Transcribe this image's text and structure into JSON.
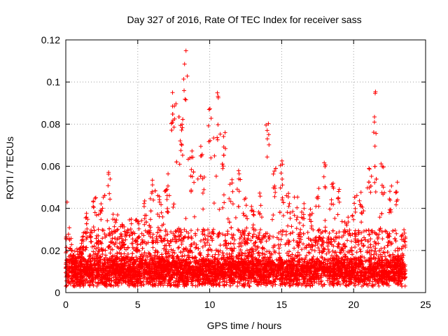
{
  "chart_data": {
    "type": "scatter",
    "title": "Day 327 of 2016, Rate Of TEC Index for receiver sass",
    "xlabel": "GPS time / hours",
    "ylabel": "ROTI / TECUs",
    "xlim": [
      0,
      25
    ],
    "ylim": [
      0,
      0.12
    ],
    "x_ticks": [
      "0",
      "5",
      "10",
      "15",
      "20",
      "25"
    ],
    "y_ticks": [
      "0",
      "0.02",
      "0.04",
      "0.06",
      "0.08",
      "0.1",
      "0.12"
    ],
    "grid": true,
    "marker": "plus",
    "color": "#ff0000",
    "envelope": [
      [
        0.0,
        0.048
      ],
      [
        0.5,
        0.02
      ],
      [
        1.0,
        0.022
      ],
      [
        1.5,
        0.038
      ],
      [
        2.0,
        0.048
      ],
      [
        2.5,
        0.046
      ],
      [
        3.0,
        0.058
      ],
      [
        3.5,
        0.038
      ],
      [
        4.0,
        0.034
      ],
      [
        4.5,
        0.036
      ],
      [
        5.0,
        0.036
      ],
      [
        5.5,
        0.045
      ],
      [
        6.0,
        0.058
      ],
      [
        6.5,
        0.048
      ],
      [
        7.0,
        0.05
      ],
      [
        7.5,
        0.096
      ],
      [
        8.0,
        0.085
      ],
      [
        8.3,
        0.12
      ],
      [
        8.8,
        0.07
      ],
      [
        9.5,
        0.07
      ],
      [
        10.0,
        0.091
      ],
      [
        10.5,
        0.096
      ],
      [
        11.0,
        0.078
      ],
      [
        11.5,
        0.055
      ],
      [
        12.0,
        0.058
      ],
      [
        12.5,
        0.046
      ],
      [
        13.0,
        0.042
      ],
      [
        13.5,
        0.048
      ],
      [
        14.0,
        0.084
      ],
      [
        14.5,
        0.06
      ],
      [
        15.0,
        0.067
      ],
      [
        15.5,
        0.05
      ],
      [
        16.0,
        0.046
      ],
      [
        16.5,
        0.044
      ],
      [
        17.0,
        0.04
      ],
      [
        17.5,
        0.052
      ],
      [
        18.0,
        0.063
      ],
      [
        18.5,
        0.052
      ],
      [
        19.0,
        0.05
      ],
      [
        19.5,
        0.036
      ],
      [
        20.0,
        0.046
      ],
      [
        20.5,
        0.048
      ],
      [
        21.0,
        0.06
      ],
      [
        21.5,
        0.097
      ],
      [
        22.0,
        0.062
      ],
      [
        22.5,
        0.05
      ],
      [
        23.0,
        0.054
      ],
      [
        23.6,
        0.03
      ]
    ],
    "baseline_range": [
      0.003,
      0.012
    ]
  }
}
